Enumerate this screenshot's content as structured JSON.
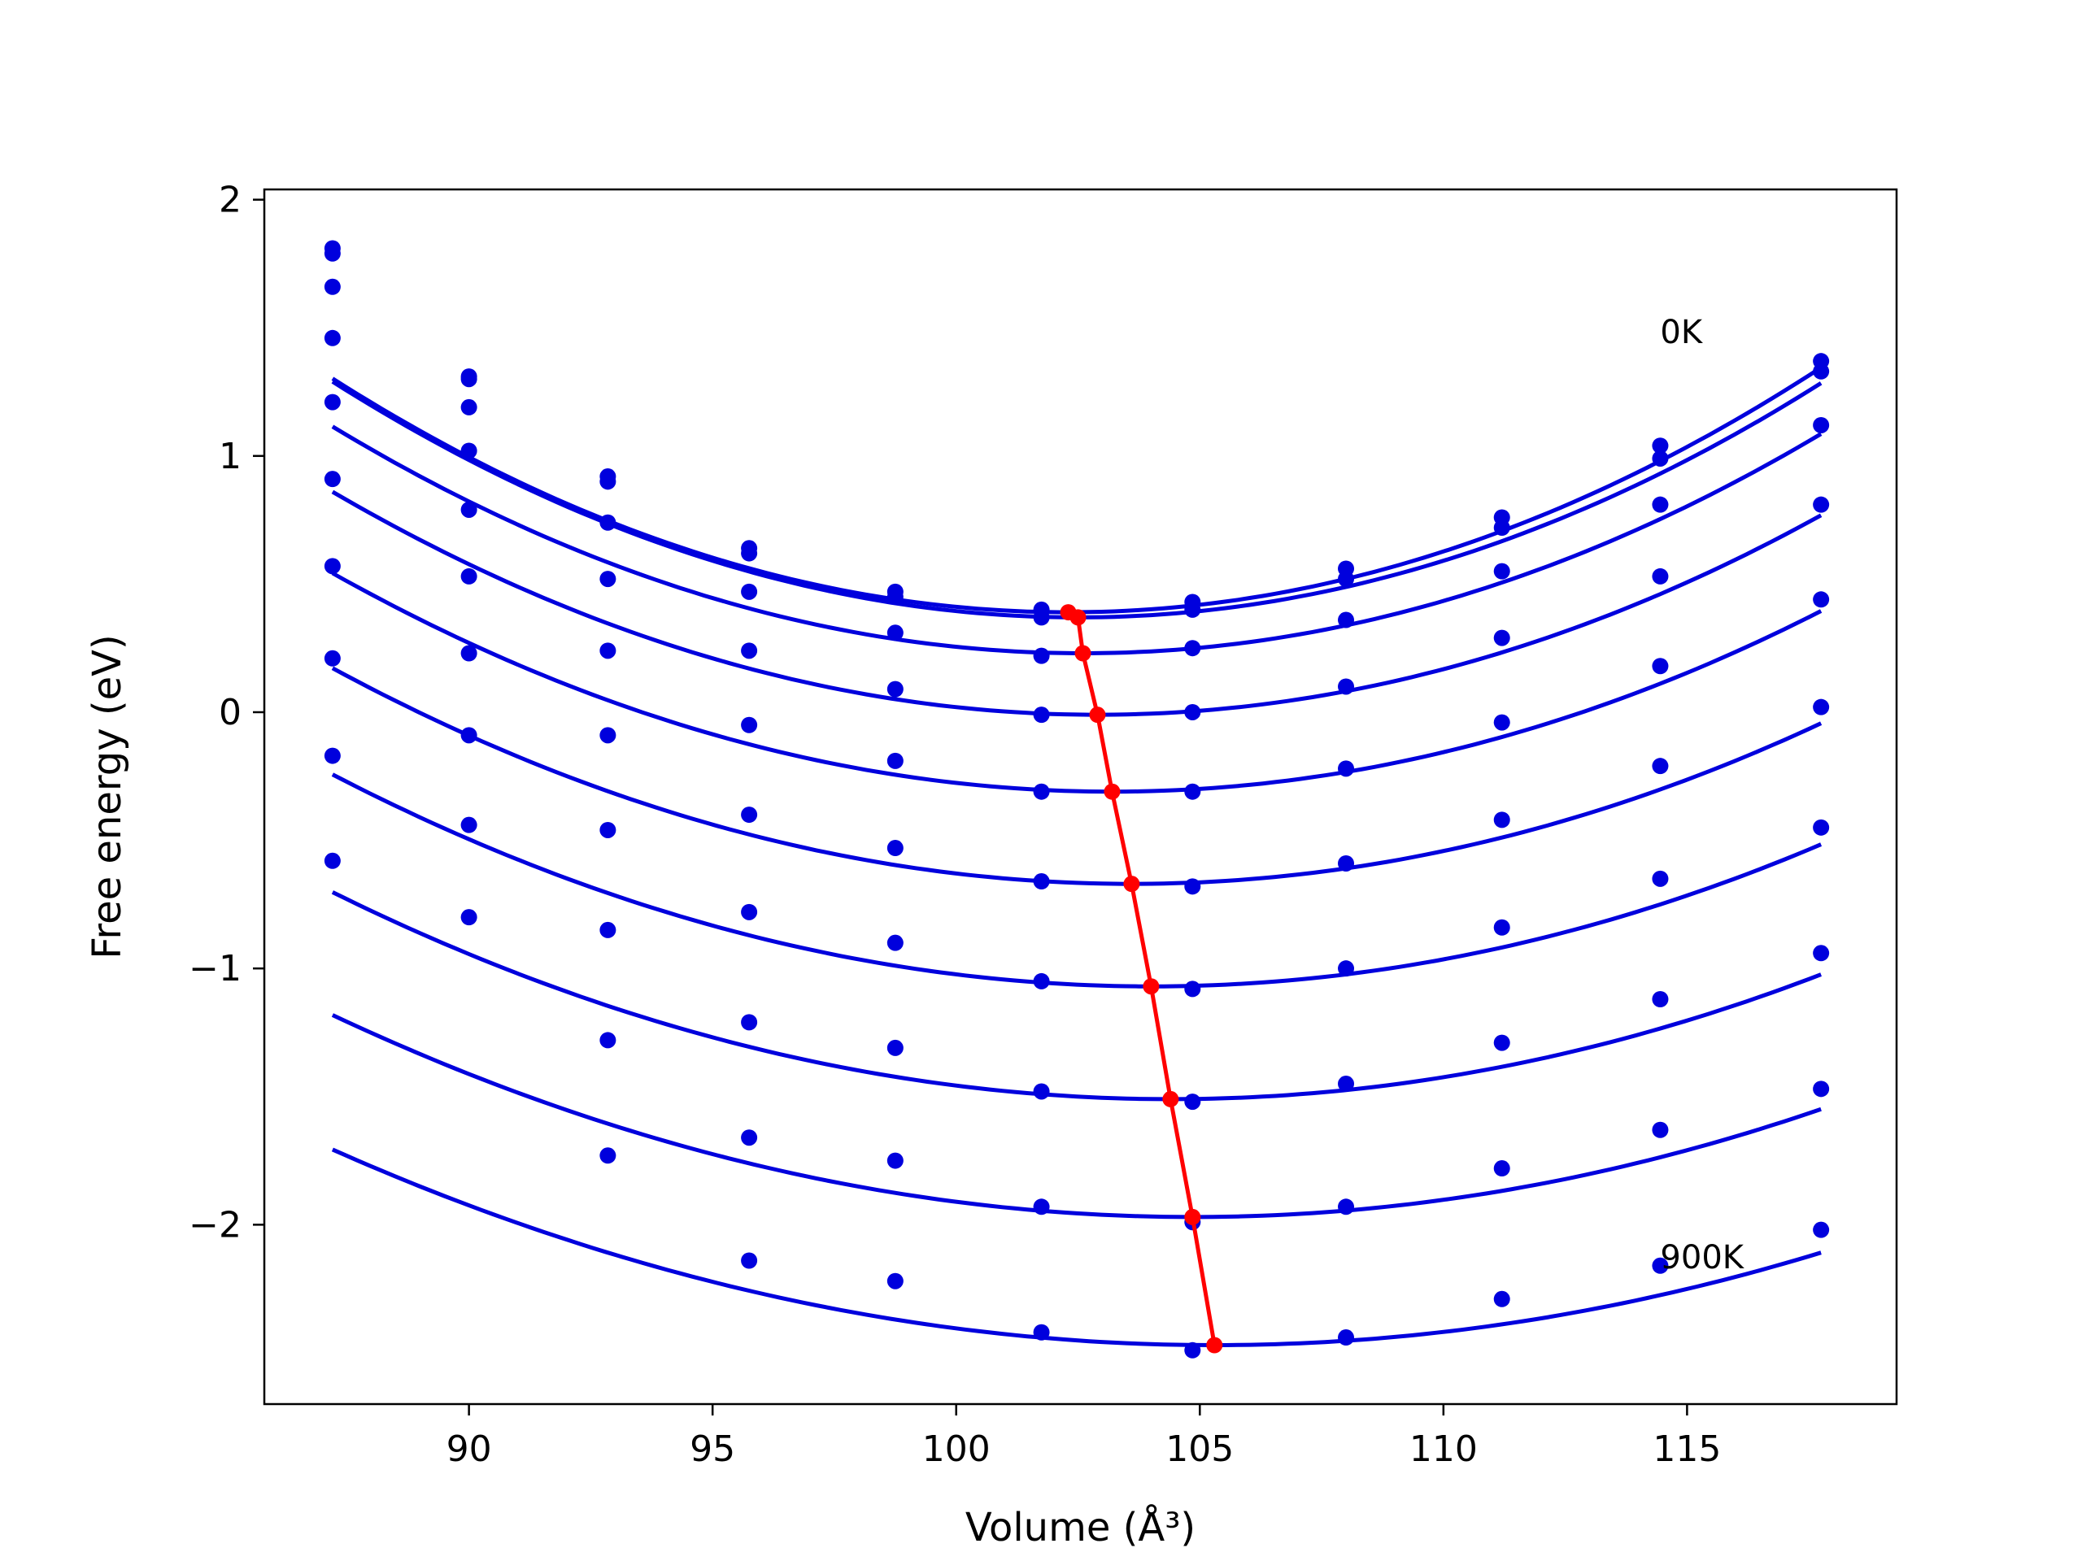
{
  "chart_data": {
    "type": "line",
    "xlabel": "Volume (Å³)",
    "ylabel": "Free energy (eV)",
    "xlim": [
      85.8,
      119.3
    ],
    "ylim": [
      -2.7,
      2.04
    ],
    "xticks": [
      90,
      95,
      100,
      105,
      110,
      115
    ],
    "yticks": [
      -2,
      -1,
      0,
      1,
      2
    ],
    "grid": false,
    "legend": "none",
    "colors": {
      "curves": "#0000dd",
      "points": "#0000dd",
      "minimum_path": "#ff0000"
    },
    "x_points": [
      87.2,
      90.0,
      92.85,
      95.75,
      98.75,
      101.75,
      104.85,
      108.0,
      111.2,
      114.45,
      117.75
    ],
    "fit_x_range": [
      87.2,
      117.75
    ],
    "annotations": [
      {
        "text": "0K",
        "x": 114.45,
        "y": 1.44
      },
      {
        "text": "900K",
        "x": 114.45,
        "y": -2.17
      }
    ],
    "series": [
      {
        "points": [
          1.81,
          1.31,
          0.92,
          0.64,
          0.47,
          0.4,
          0.43,
          0.56,
          0.76,
          1.04,
          1.37
        ],
        "fit": {
          "a": 0.004,
          "v0": 102.3,
          "e0": 0.39
        }
      },
      {
        "points": [
          1.79,
          1.3,
          0.9,
          0.62,
          0.45,
          0.37,
          0.4,
          0.52,
          0.72,
          0.99,
          1.33
        ],
        "fit": {
          "a": 0.00393,
          "v0": 102.5,
          "e0": 0.37
        }
      },
      {
        "points": [
          1.66,
          1.19,
          0.74,
          0.47,
          0.31,
          0.22,
          0.25,
          0.36,
          0.55,
          0.81,
          1.12
        ],
        "fit": {
          "a": 0.00373,
          "v0": 102.6,
          "e0": 0.23
        }
      },
      {
        "points": [
          1.46,
          1.02,
          0.52,
          0.24,
          0.09,
          -0.01,
          0.0,
          0.1,
          0.29,
          0.53,
          0.81
        ],
        "fit": {
          "a": 0.00353,
          "v0": 102.9,
          "e0": -0.01
        }
      },
      {
        "points": [
          1.21,
          0.79,
          0.24,
          -0.05,
          -0.19,
          -0.31,
          -0.31,
          -0.22,
          -0.04,
          0.18,
          0.44
        ],
        "fit": {
          "a": 0.00333,
          "v0": 103.2,
          "e0": -0.31
        }
      },
      {
        "points": [
          0.91,
          0.53,
          -0.09,
          -0.4,
          -0.53,
          -0.66,
          -0.68,
          -0.59,
          -0.42,
          -0.21,
          0.02
        ],
        "fit": {
          "a": 0.00313,
          "v0": 103.6,
          "e0": -0.67
        }
      },
      {
        "points": [
          0.57,
          0.23,
          -0.46,
          -0.78,
          -0.9,
          -1.05,
          -1.08,
          -1.0,
          -0.84,
          -0.65,
          -0.45
        ],
        "fit": {
          "a": 0.00293,
          "v0": 104.0,
          "e0": -1.07
        }
      },
      {
        "points": [
          0.21,
          -0.09,
          -0.85,
          -1.21,
          -1.31,
          -1.48,
          -1.52,
          -1.45,
          -1.29,
          -1.12,
          -0.94
        ],
        "fit": {
          "a": 0.00273,
          "v0": 104.4,
          "e0": -1.51
        }
      },
      {
        "points": [
          -0.17,
          -0.44,
          -1.28,
          -1.66,
          -1.75,
          -1.93,
          -1.99,
          -1.93,
          -1.78,
          -1.63,
          -1.47
        ],
        "fit": {
          "a": 0.00253,
          "v0": 104.85,
          "e0": -1.97
        }
      },
      {
        "points": [
          -0.58,
          -0.8,
          -1.73,
          -2.14,
          -2.22,
          -2.42,
          -2.49,
          -2.44,
          -2.29,
          -2.16,
          -2.02
        ],
        "fit": {
          "a": 0.00233,
          "v0": 105.3,
          "e0": -2.47
        }
      }
    ],
    "minimum_path": {
      "x": [
        102.3,
        102.5,
        102.6,
        102.9,
        103.2,
        103.6,
        104.0,
        104.4,
        104.85,
        105.3
      ],
      "y": [
        0.39,
        0.37,
        0.23,
        -0.01,
        -0.31,
        -0.67,
        -1.07,
        -1.51,
        -1.97,
        -2.47
      ]
    }
  }
}
